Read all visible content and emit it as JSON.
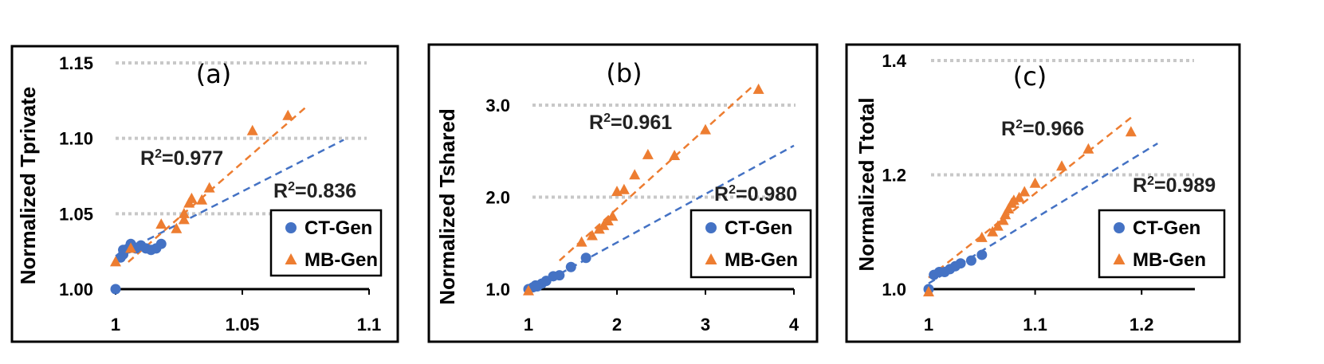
{
  "colors": {
    "ct_gen": "#4472C4",
    "mb_gen": "#ED7D31",
    "grid": "#c8c8c8",
    "frame": "#000000"
  },
  "legend_labels": [
    "CT-Gen",
    "MB-Gen"
  ],
  "chart_data": [
    {
      "type": "scatter",
      "panel_label": "(a)",
      "ylabel": "Normalized Tprivate",
      "xlabel": "",
      "xlim": [
        1,
        1.1
      ],
      "ylim": [
        1.0,
        1.15
      ],
      "xticks": [
        1,
        1.05,
        1.1
      ],
      "xtick_labels": [
        "1",
        "1.05",
        "1.1"
      ],
      "yticks": [
        1.0,
        1.05,
        1.1,
        1.15
      ],
      "ytick_labels": [
        "1.00",
        "1.05",
        "1.10",
        "1.15"
      ],
      "grid": true,
      "legend_position": "bottom-right",
      "series": [
        {
          "name": "CT-Gen",
          "marker": "circle",
          "points": [
            [
              1.0,
              1.0
            ],
            [
              1.002,
              1.021
            ],
            [
              1.003,
              1.023
            ],
            [
              1.003,
              1.026
            ],
            [
              1.005,
              1.027
            ],
            [
              1.006,
              1.03
            ],
            [
              1.007,
              1.028
            ],
            [
              1.008,
              1.027
            ],
            [
              1.01,
              1.029
            ],
            [
              1.012,
              1.027
            ],
            [
              1.014,
              1.026
            ],
            [
              1.016,
              1.027
            ],
            [
              1.018,
              1.03
            ]
          ],
          "trendline": [
            [
              1.0,
              1.022
            ],
            [
              1.09,
              1.099
            ]
          ],
          "r2_label": "0.836"
        },
        {
          "name": "MB-Gen",
          "marker": "triangle",
          "points": [
            [
              1.0,
              1.018
            ],
            [
              1.006,
              1.027
            ],
            [
              1.018,
              1.043
            ],
            [
              1.024,
              1.04
            ],
            [
              1.027,
              1.05
            ],
            [
              1.027,
              1.046
            ],
            [
              1.029,
              1.057
            ],
            [
              1.03,
              1.06
            ],
            [
              1.034,
              1.059
            ],
            [
              1.037,
              1.067
            ],
            [
              1.054,
              1.105
            ],
            [
              1.068,
              1.115
            ]
          ],
          "trendline": [
            [
              1.005,
              1.018
            ],
            [
              1.076,
              1.122
            ]
          ],
          "r2_label": "0.977"
        }
      ]
    },
    {
      "type": "scatter",
      "panel_label": "(b)",
      "ylabel": "Normalized Tshared",
      "xlabel": "",
      "xlim": [
        1,
        4
      ],
      "ylim": [
        1.0,
        3.0
      ],
      "xticks": [
        1,
        2,
        3,
        4
      ],
      "xtick_labels": [
        "1",
        "2",
        "3",
        "4"
      ],
      "yticks": [
        1.0,
        2.0,
        3.0
      ],
      "ytick_labels": [
        "1.0",
        "2.0",
        "3.0"
      ],
      "grid": true,
      "legend_position": "bottom-right",
      "series": [
        {
          "name": "CT-Gen",
          "marker": "circle",
          "points": [
            [
              1.0,
              1.0
            ],
            [
              1.05,
              1.02
            ],
            [
              1.08,
              1.04
            ],
            [
              1.1,
              1.03
            ],
            [
              1.15,
              1.06
            ],
            [
              1.2,
              1.09
            ],
            [
              1.28,
              1.14
            ],
            [
              1.35,
              1.15
            ],
            [
              1.48,
              1.24
            ],
            [
              1.65,
              1.34
            ]
          ],
          "trendline": [
            [
              1.0,
              0.98
            ],
            [
              4.0,
              2.56
            ]
          ],
          "r2_label": "0.980"
        },
        {
          "name": "MB-Gen",
          "marker": "triangle",
          "points": [
            [
              1.0,
              0.98
            ],
            [
              1.6,
              1.51
            ],
            [
              1.72,
              1.58
            ],
            [
              1.8,
              1.65
            ],
            [
              1.85,
              1.69
            ],
            [
              1.9,
              1.74
            ],
            [
              1.95,
              1.79
            ],
            [
              2.0,
              2.06
            ],
            [
              2.08,
              2.08
            ],
            [
              2.2,
              2.24
            ],
            [
              2.35,
              2.46
            ],
            [
              2.65,
              2.45
            ],
            [
              3.0,
              2.73
            ],
            [
              3.6,
              3.17
            ]
          ],
          "trendline": [
            [
              1.35,
              1.31
            ],
            [
              3.55,
              3.22
            ]
          ],
          "r2_label": "0.961"
        }
      ]
    },
    {
      "type": "scatter",
      "panel_label": "(c)",
      "ylabel": "Normalized Ttotal",
      "xlabel": "",
      "xlim": [
        1,
        1.25
      ],
      "ylim": [
        1.0,
        1.4
      ],
      "xticks": [
        1,
        1.1,
        1.2
      ],
      "xtick_labels": [
        "1",
        "1.1",
        "1.2"
      ],
      "yticks": [
        1.0,
        1.2,
        1.4
      ],
      "ytick_labels": [
        "1.0",
        "1.2",
        "1.4"
      ],
      "grid": true,
      "legend_position": "bottom-right",
      "series": [
        {
          "name": "CT-Gen",
          "marker": "circle",
          "points": [
            [
              1.0,
              1.0
            ],
            [
              1.005,
              1.025
            ],
            [
              1.01,
              1.03
            ],
            [
              1.015,
              1.03
            ],
            [
              1.02,
              1.035
            ],
            [
              1.025,
              1.04
            ],
            [
              1.03,
              1.045
            ],
            [
              1.04,
              1.05
            ],
            [
              1.05,
              1.06
            ]
          ],
          "trendline": [
            [
              1.0,
              1.01
            ],
            [
              1.215,
              1.255
            ]
          ],
          "r2_label": "0.989"
        },
        {
          "name": "MB-Gen",
          "marker": "triangle",
          "points": [
            [
              1.0,
              0.995
            ],
            [
              1.05,
              1.09
            ],
            [
              1.06,
              1.1
            ],
            [
              1.065,
              1.11
            ],
            [
              1.07,
              1.12
            ],
            [
              1.072,
              1.13
            ],
            [
              1.075,
              1.14
            ],
            [
              1.078,
              1.15
            ],
            [
              1.08,
              1.155
            ],
            [
              1.085,
              1.16
            ],
            [
              1.09,
              1.17
            ],
            [
              1.1,
              1.185
            ],
            [
              1.125,
              1.215
            ],
            [
              1.15,
              1.245
            ],
            [
              1.19,
              1.275
            ]
          ],
          "trendline": [
            [
              1.0,
              1.02
            ],
            [
              1.19,
              1.3
            ]
          ],
          "r2_label": "0.966"
        }
      ]
    }
  ]
}
